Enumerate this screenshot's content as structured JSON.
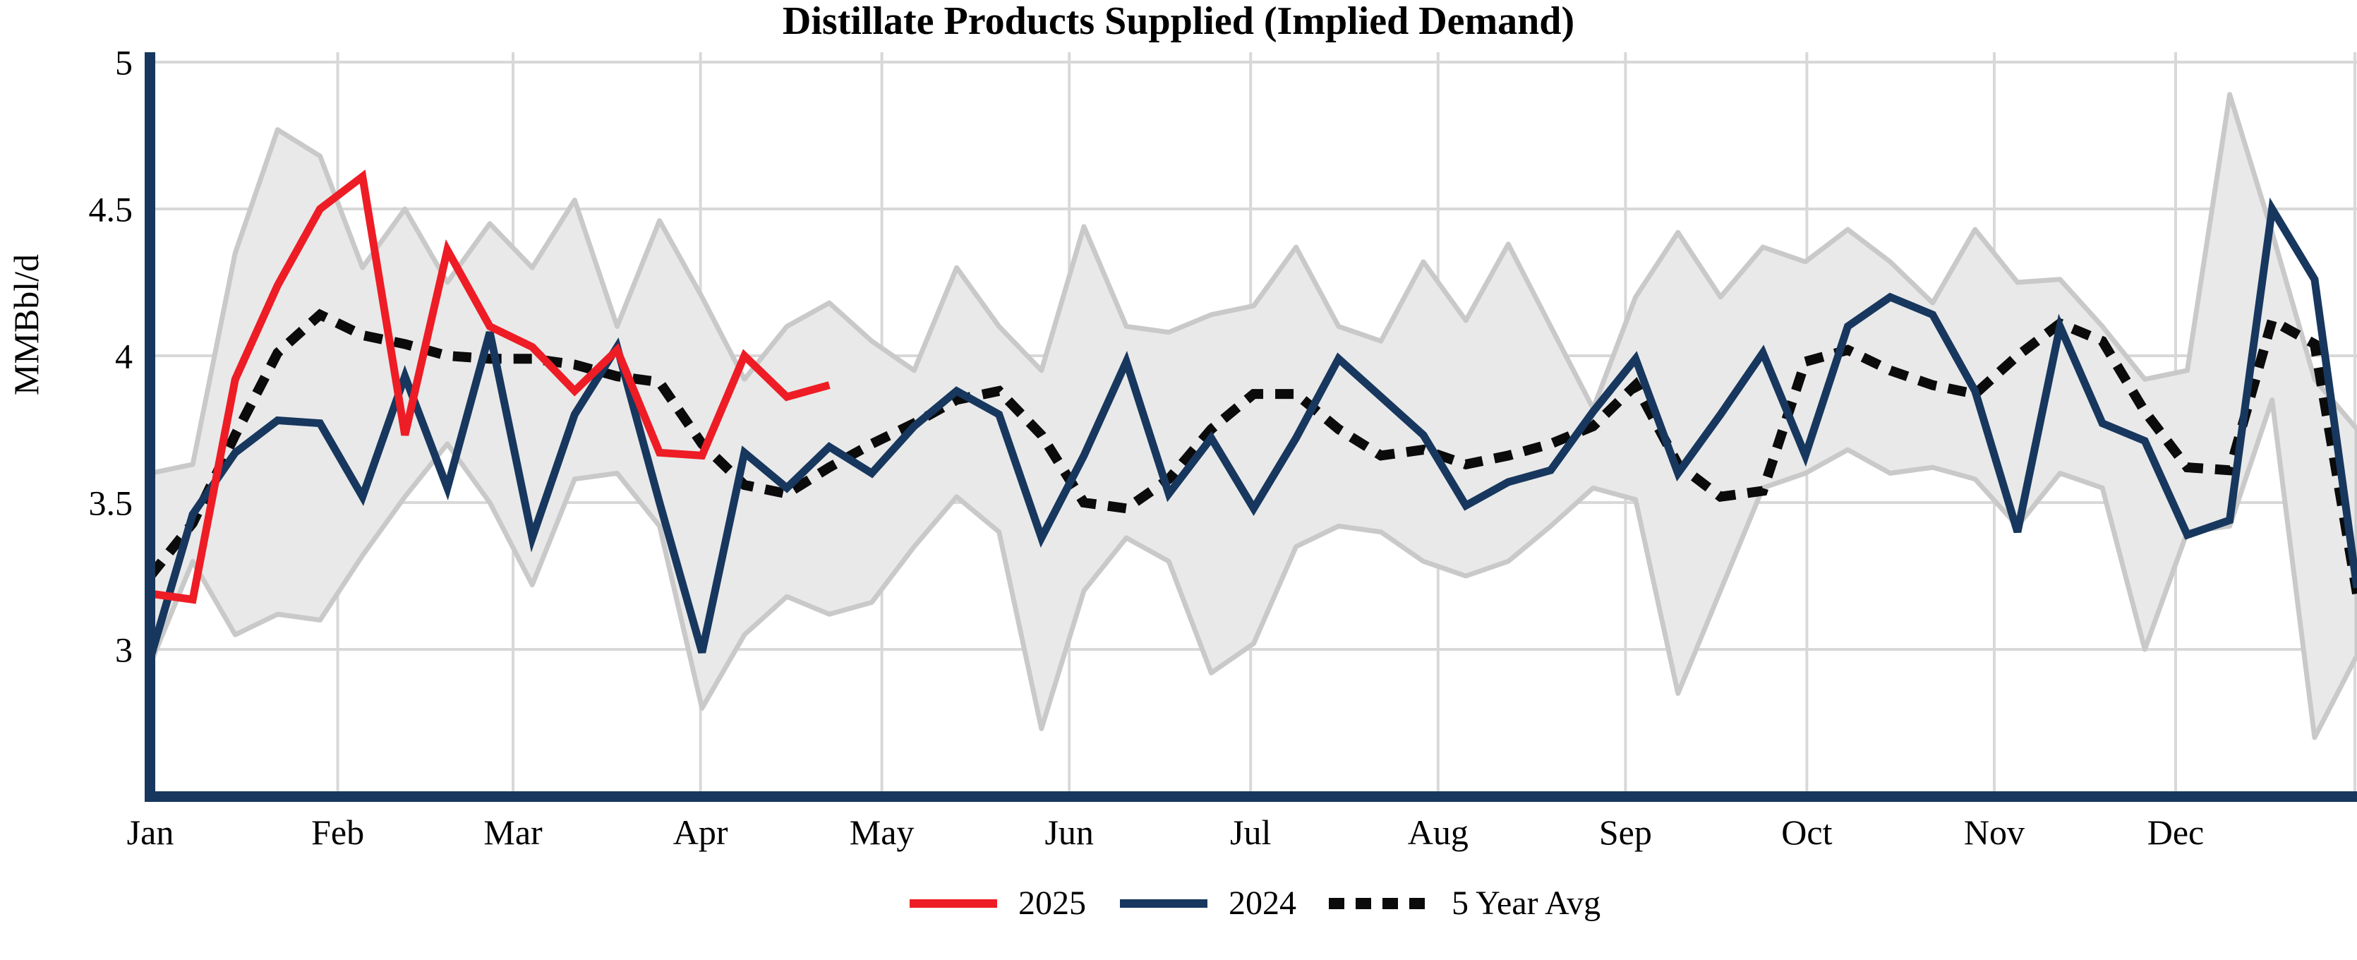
{
  "chart_data": {
    "type": "line",
    "title": "Distillate Products Supplied (Implied Demand)",
    "ylabel": "MMBbl/d",
    "xlabel": "",
    "grid": true,
    "legend_position": "bottom-center",
    "x_axis": {
      "tick_labels": [
        "Jan",
        "Feb",
        "Mar",
        "Apr",
        "May",
        "Jun",
        "Jul",
        "Aug",
        "Sep",
        "Oct",
        "Nov",
        "Dec"
      ],
      "unit": "week of year",
      "weeks": 53
    },
    "y_axis": {
      "tick_labels": [
        "5",
        "4.5",
        "4",
        "3.5",
        "3"
      ],
      "tick_values": [
        5,
        4.5,
        4,
        3.5,
        3
      ],
      "range": [
        2.5,
        5.07
      ]
    },
    "series": [
      {
        "name": "2025",
        "color": "#ee1c25",
        "line_style": "solid",
        "weekly_values": [
          3.19,
          3.17,
          3.92,
          4.24,
          4.5,
          4.61,
          3.73,
          4.36,
          4.1,
          4.03,
          3.88,
          4.02,
          3.67,
          3.66,
          4.0,
          3.86,
          3.9
        ]
      },
      {
        "name": "2024",
        "color": "#17375e",
        "line_style": "solid",
        "weekly_values": [
          2.97,
          3.46,
          3.67,
          3.78,
          3.77,
          3.52,
          3.93,
          3.55,
          4.08,
          3.38,
          3.8,
          4.03,
          3.5,
          2.99,
          3.67,
          3.55,
          3.69,
          3.6,
          3.76,
          3.88,
          3.8,
          3.38,
          3.66,
          3.98,
          3.53,
          3.72,
          3.48,
          3.72,
          3.99,
          3.86,
          3.73,
          3.49,
          3.57,
          3.61,
          3.81,
          3.99,
          3.6,
          3.8,
          4.01,
          3.66,
          4.1,
          4.2,
          4.14,
          3.88,
          3.4,
          4.1,
          3.77,
          3.71,
          3.39,
          3.44,
          4.5,
          4.26,
          3.21
        ]
      },
      {
        "name": "5 Year Avg",
        "color": "#0b0b0b",
        "line_style": "dotted",
        "weekly_values": [
          3.25,
          3.43,
          3.73,
          4.01,
          4.14,
          4.07,
          4.04,
          4.0,
          3.99,
          3.99,
          3.97,
          3.93,
          3.91,
          3.7,
          3.56,
          3.53,
          3.62,
          3.7,
          3.77,
          3.85,
          3.88,
          3.73,
          3.5,
          3.48,
          3.58,
          3.75,
          3.87,
          3.87,
          3.75,
          3.66,
          3.68,
          3.63,
          3.66,
          3.7,
          3.76,
          3.9,
          3.63,
          3.52,
          3.54,
          3.98,
          4.02,
          3.95,
          3.9,
          3.87,
          4.0,
          4.11,
          4.05,
          3.81,
          3.62,
          3.61,
          4.12,
          4.04,
          3.19
        ]
      }
    ],
    "range_band": {
      "description": "5 year min-max range (shaded)",
      "fill": "#e9e9e9",
      "edge": "#c9c9c9",
      "min_values": [
        2.95,
        3.3,
        3.05,
        3.12,
        3.1,
        3.32,
        3.52,
        3.7,
        3.5,
        3.22,
        3.58,
        3.6,
        3.42,
        2.8,
        3.05,
        3.18,
        3.12,
        3.16,
        3.35,
        3.52,
        3.4,
        2.73,
        3.2,
        3.38,
        3.3,
        2.92,
        3.02,
        3.35,
        3.42,
        3.4,
        3.3,
        3.25,
        3.3,
        3.42,
        3.55,
        3.51,
        2.85,
        3.2,
        3.55,
        3.6,
        3.68,
        3.6,
        3.62,
        3.58,
        3.42,
        3.6,
        3.55,
        3.0,
        3.4,
        3.42,
        3.85,
        2.7,
        2.98
      ],
      "max_values": [
        3.6,
        3.63,
        4.35,
        4.77,
        4.68,
        4.3,
        4.5,
        4.25,
        4.45,
        4.3,
        4.53,
        4.1,
        4.46,
        4.2,
        3.92,
        4.1,
        4.18,
        4.05,
        3.95,
        4.3,
        4.1,
        3.95,
        4.44,
        4.1,
        4.08,
        4.14,
        4.17,
        4.37,
        4.1,
        4.05,
        4.32,
        4.12,
        4.38,
        4.1,
        3.82,
        4.2,
        4.42,
        4.2,
        4.37,
        4.32,
        4.43,
        4.32,
        4.18,
        4.43,
        4.25,
        4.26,
        4.1,
        3.92,
        3.95,
        4.89,
        4.42,
        3.92,
        3.75
      ]
    }
  },
  "colors": {
    "axis": "#17375e",
    "gridline": "#d8d8d8",
    "background": "#ffffff",
    "text": "#000000"
  }
}
